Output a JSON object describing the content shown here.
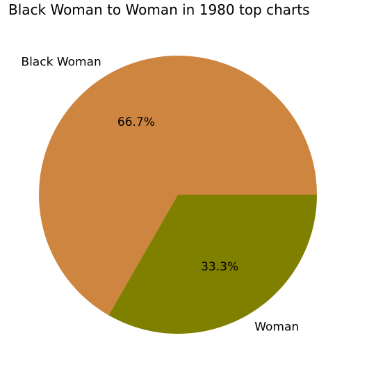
{
  "chart_data": {
    "type": "pie",
    "title": "Black Woman to Woman in 1980 top charts",
    "start_angle_deg": 0,
    "direction": "counterclockwise",
    "slices": [
      {
        "label": "Black Woman",
        "value": 66.7,
        "pct_label": "66.7%",
        "color": "#cd853f"
      },
      {
        "label": "Woman",
        "value": 33.3,
        "pct_label": "33.3%",
        "color": "#808000"
      }
    ]
  }
}
